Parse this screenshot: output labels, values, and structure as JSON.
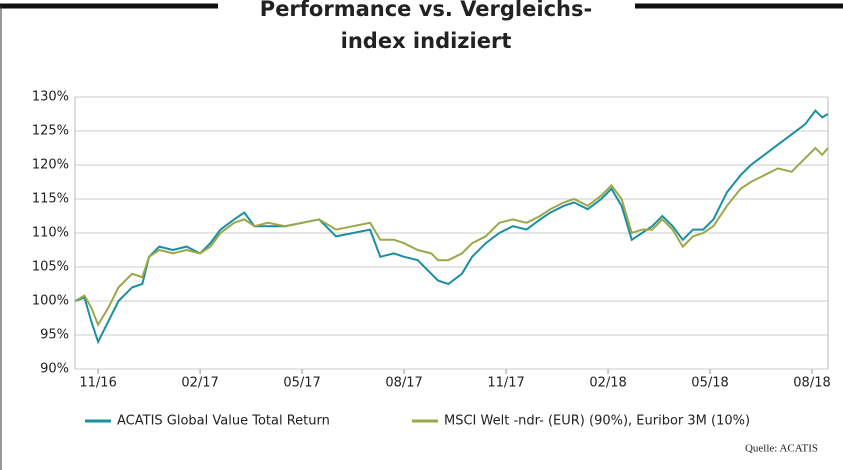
{
  "chart_data": {
    "type": "line",
    "title": [
      "Performance vs. Vergleichs-",
      "index indiziert"
    ],
    "source": "Quelle: ACATIS",
    "x": [
      -0.68,
      -0.4,
      -0.2,
      0,
      0.3,
      0.6,
      1.0,
      1.3,
      1.5,
      1.8,
      2.2,
      2.6,
      3.0,
      3.3,
      3.6,
      4.0,
      4.3,
      4.6,
      5.0,
      5.5,
      6.0,
      6.5,
      7.0,
      7.5,
      8.0,
      8.3,
      8.7,
      9.0,
      9.4,
      9.8,
      10.0,
      10.3,
      10.7,
      11.0,
      11.4,
      11.8,
      12.2,
      12.6,
      13.0,
      13.3,
      13.7,
      14.0,
      14.4,
      14.8,
      15.1,
      15.4,
      15.7,
      16.0,
      16.3,
      16.6,
      16.9,
      17.2,
      17.5,
      17.8,
      18.1,
      18.5,
      18.9,
      19.2,
      19.6,
      20.0,
      20.4,
      20.8,
      21.1,
      21.3,
      21.47
    ],
    "series": [
      {
        "name": "ACATIS Global Value Total Return",
        "color": "#1a8fa0",
        "values": [
          100,
          100.5,
          97,
          94,
          97,
          100,
          102,
          102.5,
          106.5,
          108,
          107.5,
          108,
          107,
          108.5,
          110.5,
          112,
          113,
          111,
          111,
          111,
          111.5,
          112,
          109.5,
          110,
          110.5,
          106.5,
          107,
          106.5,
          106,
          104,
          103,
          102.5,
          104,
          106.5,
          108.5,
          110,
          111,
          110.5,
          112,
          113,
          114,
          114.5,
          113.5,
          115,
          116.5,
          114,
          109,
          110,
          111,
          112.5,
          111,
          109,
          110.5,
          110.5,
          112,
          116,
          118.5,
          120,
          121.5,
          123,
          124.5,
          126,
          128,
          127,
          127.5
        ]
      },
      {
        "name": "MSCI Welt -ndr- (EUR) (90%), Euribor 3M (10%)",
        "color": "#9aa84a",
        "values": [
          100,
          100.8,
          99,
          96.5,
          99,
          102,
          104,
          103.5,
          106.5,
          107.5,
          107,
          107.5,
          107,
          108,
          110,
          111.5,
          112,
          111,
          111.5,
          111,
          111.5,
          112,
          110.5,
          111,
          111.5,
          109,
          109,
          108.5,
          107.5,
          107,
          106,
          106,
          107,
          108.5,
          109.5,
          111.5,
          112,
          111.5,
          112.5,
          113.5,
          114.5,
          115,
          114,
          115.5,
          117,
          115,
          110,
          110.5,
          110.5,
          112,
          110.5,
          108,
          109.5,
          110,
          111,
          114,
          116.5,
          117.5,
          118.5,
          119.5,
          119,
          121,
          122.5,
          121.5,
          122.5
        ]
      }
    ],
    "xlim": [
      -0.68,
      21.47
    ],
    "xticks": [
      {
        "value": 0,
        "label": "11/16"
      },
      {
        "value": 3,
        "label": "02/17"
      },
      {
        "value": 6,
        "label": "05/17"
      },
      {
        "value": 9,
        "label": "08/17"
      },
      {
        "value": 12,
        "label": "11/17"
      },
      {
        "value": 15,
        "label": "02/18"
      },
      {
        "value": 18,
        "label": "05/18"
      },
      {
        "value": 21,
        "label": "08/18"
      }
    ],
    "ylim": [
      90,
      130
    ],
    "yticks": [
      {
        "value": 90,
        "label": "90%"
      },
      {
        "value": 95,
        "label": "95%"
      },
      {
        "value": 100,
        "label": "100%"
      },
      {
        "value": 105,
        "label": "105%"
      },
      {
        "value": 110,
        "label": "110%"
      },
      {
        "value": 115,
        "label": "115%"
      },
      {
        "value": 120,
        "label": "120%"
      },
      {
        "value": 125,
        "label": "125%"
      },
      {
        "value": 130,
        "label": "130%"
      }
    ],
    "grid": true
  }
}
